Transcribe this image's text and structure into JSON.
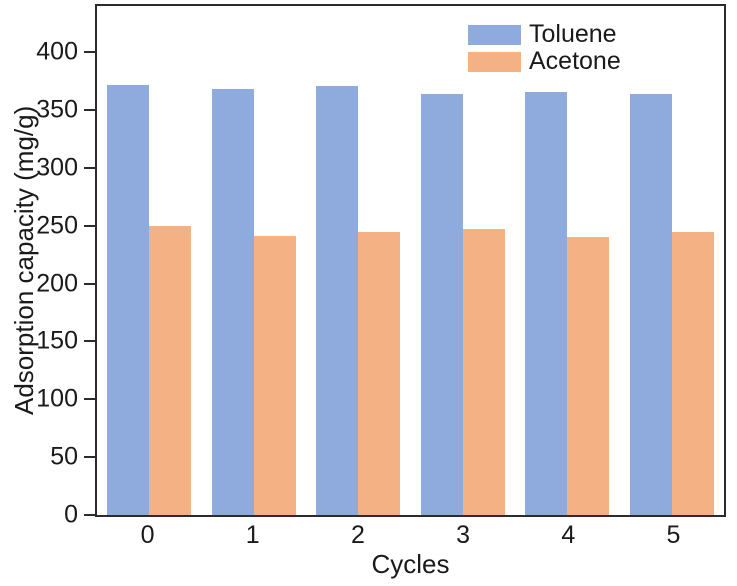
{
  "figure": {
    "background": "#ffffff",
    "axis_color": "#2b2b2b",
    "text_color": "#1a1a1a"
  },
  "chart_data": {
    "type": "bar",
    "title": "",
    "xlabel": "Cycles",
    "ylabel": "Adsorption capacity (mg/g)",
    "categories": [
      "0",
      "1",
      "2",
      "3",
      "4",
      "5"
    ],
    "series": [
      {
        "name": "Toluene",
        "color": "#8FAADC",
        "values": [
          372,
          368,
          371,
          364,
          366,
          364
        ]
      },
      {
        "name": "Acetone",
        "color": "#F4B183",
        "values": [
          250,
          241,
          245,
          247,
          240,
          245
        ]
      }
    ],
    "ylim": [
      0,
      440
    ],
    "yticks": [
      0,
      50,
      100,
      150,
      200,
      250,
      300,
      350,
      400
    ],
    "grid": false,
    "legend_position": "upper-right-inside"
  }
}
